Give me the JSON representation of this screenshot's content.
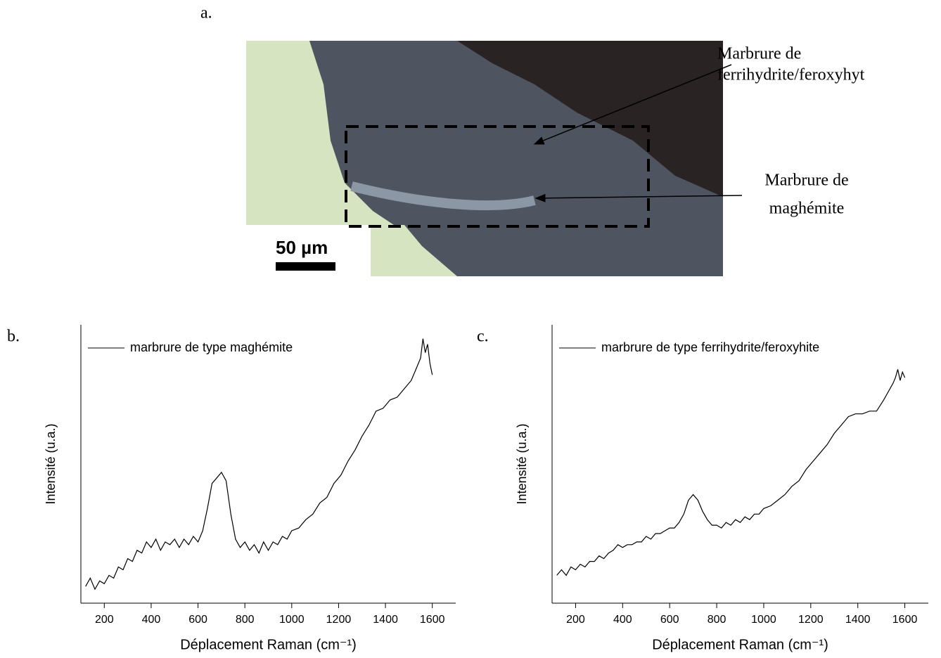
{
  "panel_a": {
    "label": "a.",
    "scale_bar": "50 µm",
    "annotations": [
      [
        "Marbrure de",
        "ferrihydrite/feroxyhyt"
      ],
      [
        "Marbrure de",
        "maghémite"
      ]
    ]
  },
  "chart_data": [
    {
      "type": "line",
      "panel_label": "b.",
      "x_label": "Déplacement Raman (cm⁻¹)",
      "y_label": "Intensité (u.a.)",
      "xlim": [
        100,
        1700
      ],
      "ylim": [
        0,
        100
      ],
      "xticks": [
        200,
        400,
        600,
        800,
        1000,
        1200,
        1400,
        1600
      ],
      "x": [
        120,
        140,
        160,
        180,
        200,
        220,
        240,
        260,
        280,
        300,
        320,
        340,
        360,
        380,
        400,
        420,
        440,
        460,
        480,
        500,
        520,
        540,
        560,
        580,
        600,
        620,
        640,
        660,
        680,
        700,
        720,
        740,
        760,
        780,
        800,
        820,
        840,
        860,
        880,
        900,
        920,
        940,
        960,
        980,
        1000,
        1030,
        1060,
        1090,
        1120,
        1150,
        1180,
        1210,
        1240,
        1270,
        1300,
        1330,
        1360,
        1390,
        1420,
        1450,
        1480,
        1510,
        1530,
        1550,
        1560,
        1570,
        1580,
        1590,
        1600
      ],
      "series": [
        {
          "name": "marbrure de type maghémite",
          "color": "#000000",
          "values": [
            6,
            9,
            5,
            8,
            7,
            10,
            9,
            13,
            12,
            16,
            15,
            19,
            18,
            22,
            20,
            23,
            19,
            22,
            21,
            23,
            20,
            23,
            21,
            24,
            22,
            26,
            34,
            43,
            45,
            47,
            44,
            32,
            23,
            20,
            22,
            19,
            21,
            18,
            22,
            19,
            22,
            21,
            24,
            23,
            26,
            27,
            30,
            32,
            36,
            38,
            43,
            46,
            51,
            55,
            60,
            64,
            69,
            70,
            73,
            74,
            77,
            80,
            84,
            88,
            95,
            90,
            93,
            86,
            82
          ]
        }
      ]
    },
    {
      "type": "line",
      "panel_label": "c.",
      "x_label": "Déplacement Raman (cm⁻¹)",
      "y_label": "Intensité (u.a.)",
      "xlim": [
        100,
        1700
      ],
      "ylim": [
        0,
        100
      ],
      "xticks": [
        200,
        400,
        600,
        800,
        1000,
        1200,
        1400,
        1600
      ],
      "x": [
        120,
        140,
        160,
        180,
        200,
        220,
        240,
        260,
        280,
        300,
        320,
        340,
        360,
        380,
        400,
        420,
        440,
        460,
        480,
        500,
        520,
        540,
        560,
        580,
        600,
        620,
        640,
        660,
        680,
        700,
        720,
        740,
        760,
        780,
        800,
        820,
        840,
        860,
        880,
        900,
        920,
        940,
        960,
        980,
        1000,
        1030,
        1060,
        1090,
        1120,
        1150,
        1180,
        1210,
        1240,
        1270,
        1300,
        1330,
        1360,
        1390,
        1420,
        1450,
        1480,
        1510,
        1530,
        1550,
        1560,
        1570,
        1580,
        1590,
        1600
      ],
      "series": [
        {
          "name": "marbrure de type ferrihydrite/feroxyhite",
          "color": "#000000",
          "values": [
            10,
            12,
            10,
            13,
            12,
            14,
            13,
            15,
            15,
            17,
            16,
            18,
            19,
            21,
            20,
            21,
            21,
            22,
            22,
            24,
            23,
            25,
            25,
            26,
            27,
            27,
            29,
            32,
            37,
            39,
            37,
            33,
            30,
            28,
            28,
            27,
            29,
            28,
            30,
            29,
            31,
            30,
            32,
            32,
            34,
            35,
            37,
            39,
            42,
            44,
            48,
            51,
            54,
            57,
            61,
            64,
            67,
            68,
            68,
            69,
            69,
            73,
            76,
            79,
            81,
            84,
            80,
            83,
            81
          ]
        }
      ]
    }
  ]
}
